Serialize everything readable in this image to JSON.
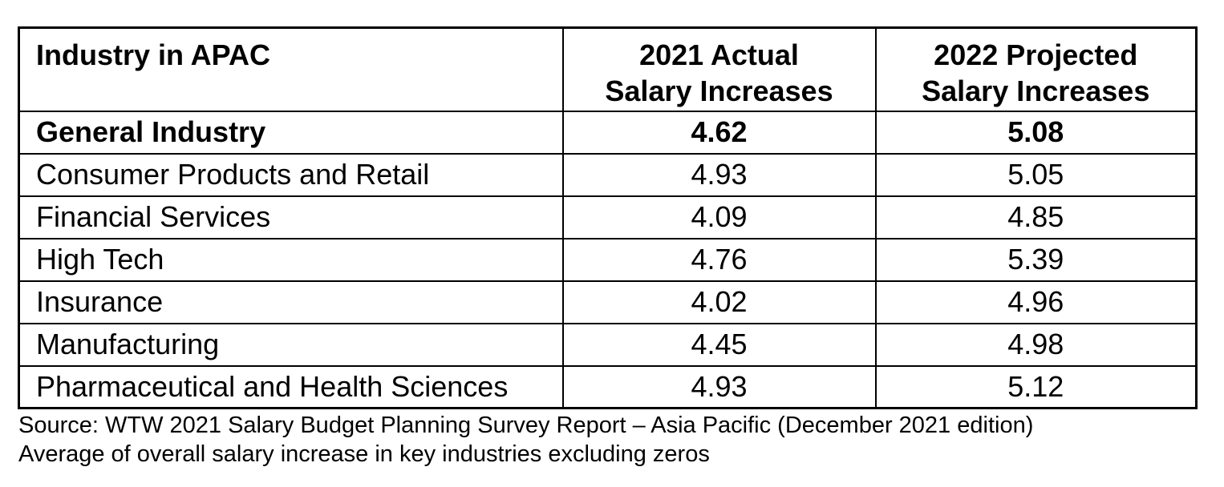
{
  "colors": {
    "bg": "#ffffff",
    "ink": "#000000",
    "rule": "#000000"
  },
  "table": {
    "headers": [
      "Industry in APAC",
      "2021 Actual\nSalary Increases",
      "2022 Projected\nSalary Increases"
    ],
    "rows": [
      {
        "industry": "General Industry",
        "actual": "4.62",
        "projected": "5.08"
      },
      {
        "industry": "Consumer Products and Retail",
        "actual": "4.93",
        "projected": "5.05"
      },
      {
        "industry": "Financial Services",
        "actual": "4.09",
        "projected": "4.85"
      },
      {
        "industry": "High Tech",
        "actual": "4.76",
        "projected": "5.39"
      },
      {
        "industry": "Insurance",
        "actual": "4.02",
        "projected": "4.96"
      },
      {
        "industry": "Manufacturing",
        "actual": "4.45",
        "projected": "4.98"
      },
      {
        "industry": "Pharmaceutical and Health Sciences",
        "actual": "4.93",
        "projected": "5.12"
      }
    ]
  },
  "footnotes": {
    "source_line": "Source: WTW 2021 Salary Budget Planning Survey Report – Asia Pacific (December 2021 edition)",
    "note_line": "Average of overall salary increase in key industries excluding zeros"
  },
  "chart_data": {
    "type": "table",
    "columns": [
      "Industry in APAC",
      "2021 Actual Salary Increases",
      "2022 Projected Salary Increases"
    ],
    "rows": [
      [
        "General Industry",
        4.62,
        5.08
      ],
      [
        "Consumer Products and Retail",
        4.93,
        5.05
      ],
      [
        "Financial Services",
        4.09,
        4.85
      ],
      [
        "High Tech",
        4.76,
        5.39
      ],
      [
        "Insurance",
        4.02,
        4.96
      ],
      [
        "Manufacturing",
        4.45,
        4.98
      ],
      [
        "Pharmaceutical and Health Sciences",
        4.93,
        5.12
      ]
    ],
    "notes": [
      "Source: WTW 2021 Salary Budget Planning Survey Report – Asia Pacific (December 2021 edition)",
      "Average of overall salary increase in key industries excluding zeros"
    ]
  }
}
